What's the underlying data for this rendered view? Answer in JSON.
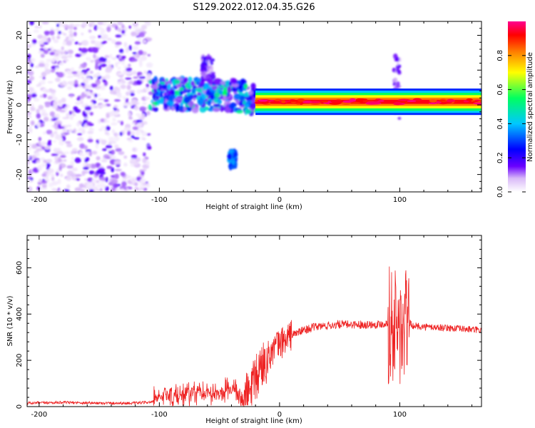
{
  "figure_title": "S129.2022.012.04.35.G26",
  "chart_data": [
    {
      "type": "heatmap",
      "xlabel": "Height of straight line (km)",
      "ylabel": "Frequency (Hz)",
      "xlim": [
        -210,
        168
      ],
      "ylim": [
        -25,
        24
      ],
      "x_ticks": [
        -200,
        -100,
        0,
        100
      ],
      "y_ticks": [
        -20,
        -10,
        0,
        10,
        20
      ],
      "colorbar": {
        "label": "Normalized spectral amplitude",
        "range": [
          0.0,
          1.0
        ],
        "ticks": [
          0.0,
          0.2,
          0.4,
          0.6,
          0.8
        ],
        "colormap": [
          "#ffffff",
          "#d8b8f8",
          "#6a00ff",
          "#0000ff",
          "#00c8ff",
          "#00ff60",
          "#ffff00",
          "#ff8000",
          "#ff0000",
          "#ff0090"
        ]
      },
      "features": [
        {
          "x_range": [
            -210,
            -108
          ],
          "y_range": [
            -25,
            24
          ],
          "amplitude": 0.15
        },
        {
          "x_range": [
            -108,
            -20
          ],
          "y_range": [
            -3,
            6
          ],
          "amplitude": 0.35
        },
        {
          "x_range": [
            -65,
            -55
          ],
          "y_range": [
            6,
            14
          ],
          "amplitude": 0.15
        },
        {
          "x_range": [
            -42,
            -36
          ],
          "y_range": [
            -18,
            -13
          ],
          "amplitude": 0.3
        },
        {
          "x_range": [
            -20,
            168
          ],
          "y_range": [
            -1,
            2
          ],
          "amplitude": 0.95
        },
        {
          "x_range": [
            95,
            100
          ],
          "y_range": [
            -4,
            14
          ],
          "amplitude": 0.15
        }
      ]
    },
    {
      "type": "line",
      "xlabel": "Height of straight line (km)",
      "ylabel": "SNR (10 * v/v)",
      "xlim": [
        -210,
        168
      ],
      "ylim": [
        0,
        740
      ],
      "x_ticks": [
        -200,
        -100,
        0,
        100
      ],
      "y_ticks": [
        0,
        200,
        400,
        600
      ],
      "color": "#ee2222",
      "x": [
        -210,
        -180,
        -150,
        -120,
        -105,
        -95,
        -85,
        -75,
        -65,
        -55,
        -45,
        -38,
        -30,
        -25,
        -20,
        -15,
        -10,
        -5,
        0,
        10,
        20,
        30,
        40,
        50,
        60,
        70,
        80,
        90,
        95,
        100,
        103,
        106,
        110,
        120,
        140,
        168
      ],
      "y": [
        15,
        18,
        15,
        15,
        20,
        50,
        45,
        60,
        70,
        60,
        75,
        80,
        20,
        60,
        110,
        180,
        210,
        250,
        270,
        310,
        330,
        345,
        350,
        355,
        355,
        355,
        355,
        360,
        350,
        330,
        300,
        380,
        350,
        345,
        340,
        330
      ]
    }
  ]
}
